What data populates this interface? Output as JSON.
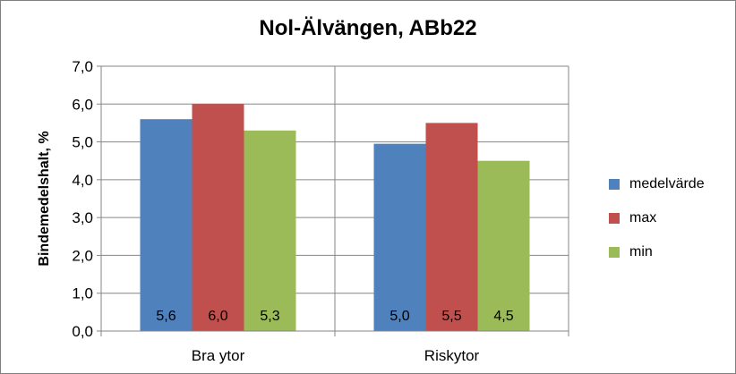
{
  "chart_data": {
    "type": "bar",
    "title": "Nol-Älvängen, ABb22",
    "ylabel": "Bindemedelshalt, %",
    "xlabel": "",
    "categories": [
      "Bra ytor",
      "Riskytor"
    ],
    "series": [
      {
        "name": "medelvärde",
        "values": [
          5.6,
          4.95
        ],
        "labels": [
          "5,6",
          "5,0"
        ],
        "color": "#4f81bd"
      },
      {
        "name": "max",
        "values": [
          6.0,
          5.5
        ],
        "labels": [
          "6,0",
          "5,5"
        ],
        "color": "#c0504d"
      },
      {
        "name": "min",
        "values": [
          5.3,
          4.5
        ],
        "labels": [
          "5,3",
          "4,5"
        ],
        "color": "#9bbb59"
      }
    ],
    "ylim": [
      0,
      7
    ],
    "yticks": [
      0,
      1,
      2,
      3,
      4,
      5,
      6,
      7
    ],
    "ytick_labels": [
      "0,0",
      "1,0",
      "2,0",
      "3,0",
      "4,0",
      "5,0",
      "6,0",
      "7,0"
    ],
    "grid": true,
    "legend_position": "right"
  }
}
